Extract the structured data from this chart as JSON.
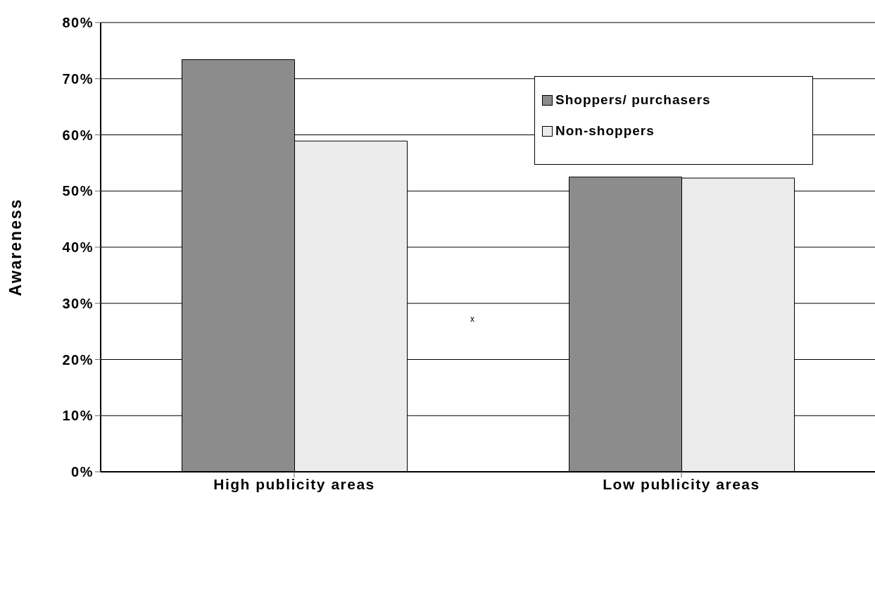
{
  "chart_data": {
    "type": "bar",
    "ylabel": "Awareness",
    "categories": [
      "High publicity areas",
      "Low publicity areas"
    ],
    "series": [
      {
        "name": "Shoppers/ purchasers",
        "color": "#8c8c8c",
        "values": [
          73.4,
          52.5
        ]
      },
      {
        "name": "Non-shoppers",
        "color": "#ececec",
        "values": [
          58.9,
          52.3
        ]
      }
    ],
    "ylim": [
      0,
      80
    ],
    "yticks": [
      {
        "value": 0,
        "label": "0%"
      },
      {
        "value": 10,
        "label": "10%"
      },
      {
        "value": 20,
        "label": "20%"
      },
      {
        "value": 30,
        "label": "30%"
      },
      {
        "value": 40,
        "label": "40%"
      },
      {
        "value": 50,
        "label": "50%"
      },
      {
        "value": 60,
        "label": "60%"
      },
      {
        "value": 70,
        "label": "70%"
      },
      {
        "value": 80,
        "label": "80%"
      }
    ],
    "grid": "y",
    "legend": "top right",
    "annotations": [
      "x"
    ]
  }
}
